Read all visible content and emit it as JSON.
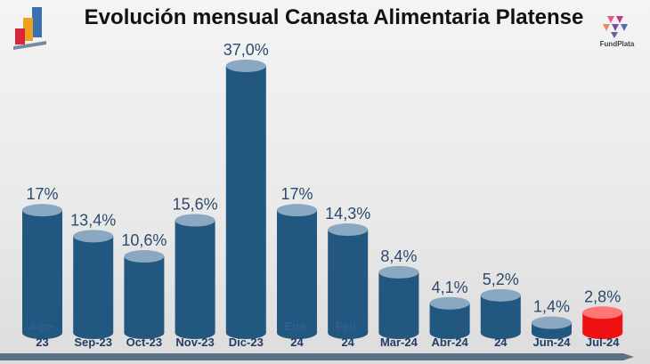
{
  "header": {
    "title": "Evolución mensual Canasta Alimentaria Platense",
    "brand": "FundPlata"
  },
  "colors": {
    "bar": "#225780",
    "bar_top": "#8aa8c2",
    "highlight": "#ee1111",
    "highlight_top": "#ff7676"
  },
  "chart_data": {
    "type": "bar",
    "title": "Evolución mensual Canasta Alimentaria Platense",
    "xlabel": "",
    "ylabel": "",
    "categories": [
      [
        "Ago-",
        "23"
      ],
      [
        "Sep-23"
      ],
      [
        "Oct-23"
      ],
      [
        "Nov-23"
      ],
      [
        "Dic-23"
      ],
      [
        "Ene-",
        "24"
      ],
      [
        "Feb-",
        "24"
      ],
      [
        "Mar-24"
      ],
      [
        "Abr-24"
      ],
      [
        "24"
      ],
      [
        "Jun-24"
      ],
      [
        "Jul-24"
      ]
    ],
    "values": [
      17.0,
      13.4,
      10.6,
      15.6,
      37.0,
      17.0,
      14.3,
      8.4,
      4.1,
      5.2,
      1.4,
      2.8
    ],
    "value_labels": [
      "17%",
      "13,4%",
      "10,6%",
      "15,6%",
      "37,0%",
      "17%",
      "14,3%",
      "8,4%",
      "4,1%",
      "5,2%",
      "1,4%",
      "2,8%"
    ],
    "highlight_index": 11,
    "ylim": [
      0,
      37
    ],
    "grid": false,
    "legend": "none"
  }
}
